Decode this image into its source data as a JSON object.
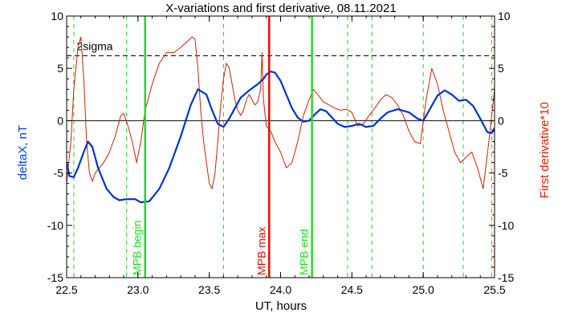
{
  "chart_data": {
    "type": "line",
    "title": "X-variations and first derivative, 08.11.2021",
    "xlabel": "UT, hours",
    "ylabel_left": "deltaX, nT",
    "ylabel_right": "First derivative*10",
    "xlim": [
      22.5,
      25.5
    ],
    "ylim": [
      -15,
      10
    ],
    "x_ticks": [
      22.5,
      23.0,
      23.5,
      24.0,
      24.5,
      25.0,
      25.5
    ],
    "x_tick_labels": [
      "22.5",
      "23.0",
      "23.5",
      "24.0",
      "24.5",
      "25.0",
      "25.5"
    ],
    "y_ticks": [
      -15,
      -10,
      -5,
      0,
      5,
      10
    ],
    "y_tick_labels": [
      "-15",
      "-10",
      "-5",
      "0",
      "5",
      "10"
    ],
    "colors": {
      "deltaX": "#0033cc",
      "derivative": "#cc2200",
      "mpb_lines": "#22dd22",
      "mpb_max": "#dd1100",
      "dashed_grid": "#22cc22",
      "left_axis_label": "#0044dd",
      "right_axis_label": "#dd2200"
    },
    "zero_line": 0,
    "two_sigma": {
      "label": "2sigma",
      "value": 6.2
    },
    "dashed_vertical_x": [
      22.55,
      22.92,
      23.6,
      24.47,
      24.64,
      25.0,
      25.28,
      25.48
    ],
    "markers": [
      {
        "x": 23.05,
        "label": "MPB begin",
        "kind": "begin"
      },
      {
        "x": 23.92,
        "label": "MPB max",
        "kind": "max"
      },
      {
        "x": 24.22,
        "label": "MPB end",
        "kind": "end"
      }
    ],
    "series": [
      {
        "name": "deltaX, nT",
        "axis": "left",
        "color": "#0033cc",
        "x": [
          22.5,
          22.52,
          22.55,
          22.58,
          22.62,
          22.65,
          22.68,
          22.72,
          22.78,
          22.83,
          22.87,
          22.92,
          22.98,
          23.02,
          23.08,
          23.15,
          23.22,
          23.3,
          23.37,
          23.42,
          23.48,
          23.52,
          23.56,
          23.6,
          23.64,
          23.68,
          23.72,
          23.78,
          23.84,
          23.88,
          23.9,
          23.93,
          23.96,
          24.0,
          24.04,
          24.08,
          24.12,
          24.16,
          24.2,
          24.24,
          24.28,
          24.32,
          24.36,
          24.4,
          24.45,
          24.5,
          24.55,
          24.6,
          24.65,
          24.7,
          24.75,
          24.82,
          24.9,
          24.96,
          25.0,
          25.05,
          25.1,
          25.15,
          25.2,
          25.25,
          25.3,
          25.35,
          25.4,
          25.45,
          25.48,
          25.5
        ],
        "y": [
          -4.0,
          -5.3,
          -5.4,
          -4.5,
          -3.0,
          -2.0,
          -2.5,
          -4.5,
          -6.5,
          -7.3,
          -7.6,
          -7.5,
          -7.5,
          -7.8,
          -7.7,
          -6.5,
          -4.5,
          -1.5,
          1.5,
          3.0,
          2.5,
          1.0,
          -0.3,
          -0.6,
          0.2,
          1.2,
          2.2,
          2.9,
          3.5,
          4.0,
          4.4,
          4.7,
          4.6,
          3.8,
          2.5,
          1.2,
          0.3,
          -0.1,
          0.0,
          0.6,
          1.1,
          0.9,
          0.3,
          -0.3,
          -0.6,
          -0.5,
          -0.3,
          -0.6,
          -0.5,
          0.2,
          0.8,
          1.1,
          0.8,
          0.2,
          0.0,
          1.2,
          2.4,
          2.9,
          2.5,
          1.9,
          2.0,
          1.4,
          0.2,
          -1.1,
          -1.2,
          -0.7
        ]
      },
      {
        "name": "First derivative*10",
        "axis": "right",
        "color": "#cc2200",
        "x": [
          22.5,
          22.53,
          22.55,
          22.58,
          22.6,
          22.62,
          22.64,
          22.66,
          22.68,
          22.7,
          22.73,
          22.76,
          22.8,
          22.84,
          22.88,
          22.9,
          22.93,
          22.96,
          22.99,
          23.02,
          23.05,
          23.1,
          23.15,
          23.2,
          23.25,
          23.3,
          23.34,
          23.38,
          23.4,
          23.42,
          23.44,
          23.46,
          23.48,
          23.5,
          23.52,
          23.54,
          23.56,
          23.58,
          23.6,
          23.62,
          23.64,
          23.66,
          23.68,
          23.7,
          23.72,
          23.74,
          23.76,
          23.78,
          23.8,
          23.82,
          23.84,
          23.86,
          23.87,
          23.88,
          23.9,
          23.93,
          23.96,
          24.0,
          24.04,
          24.08,
          24.12,
          24.16,
          24.2,
          24.23,
          24.26,
          24.3,
          24.34,
          24.38,
          24.42,
          24.46,
          24.5,
          24.54,
          24.58,
          24.62,
          24.66,
          24.7,
          24.74,
          24.78,
          24.82,
          24.86,
          24.9,
          24.94,
          24.98,
          25.02,
          25.06,
          25.1,
          25.14,
          25.18,
          25.22,
          25.26,
          25.3,
          25.34,
          25.38,
          25.42,
          25.46,
          25.5
        ],
        "y": [
          -6.0,
          -2.0,
          3.0,
          7.0,
          8.0,
          4.0,
          -2.0,
          -5.0,
          -5.8,
          -5.0,
          -4.5,
          -4.0,
          -3.0,
          -1.5,
          0.5,
          0.7,
          -0.5,
          -2.0,
          -4.0,
          -2.0,
          1.0,
          3.5,
          5.5,
          6.5,
          6.5,
          7.0,
          7.5,
          8.0,
          7.8,
          5.0,
          1.0,
          -2.0,
          -4.0,
          -6.0,
          -6.5,
          -5.0,
          -2.0,
          1.5,
          4.0,
          5.5,
          5.0,
          3.5,
          2.0,
          1.0,
          0.5,
          1.0,
          2.0,
          2.5,
          2.0,
          1.5,
          1.8,
          3.0,
          6.5,
          2.0,
          -0.5,
          -1.0,
          -2.0,
          -3.0,
          -4.5,
          -4.0,
          -2.0,
          0.5,
          2.0,
          3.0,
          2.5,
          1.8,
          1.5,
          1.2,
          1.0,
          1.1,
          0.8,
          -0.5,
          -0.3,
          0.5,
          1.2,
          2.0,
          2.5,
          2.2,
          1.5,
          0.5,
          -1.0,
          -2.0,
          -2.2,
          2.0,
          5.0,
          3.5,
          1.0,
          -1.0,
          -3.0,
          -4.0,
          -3.5,
          -3.0,
          -4.5,
          -6.5,
          -2.0,
          3.0
        ]
      }
    ]
  }
}
